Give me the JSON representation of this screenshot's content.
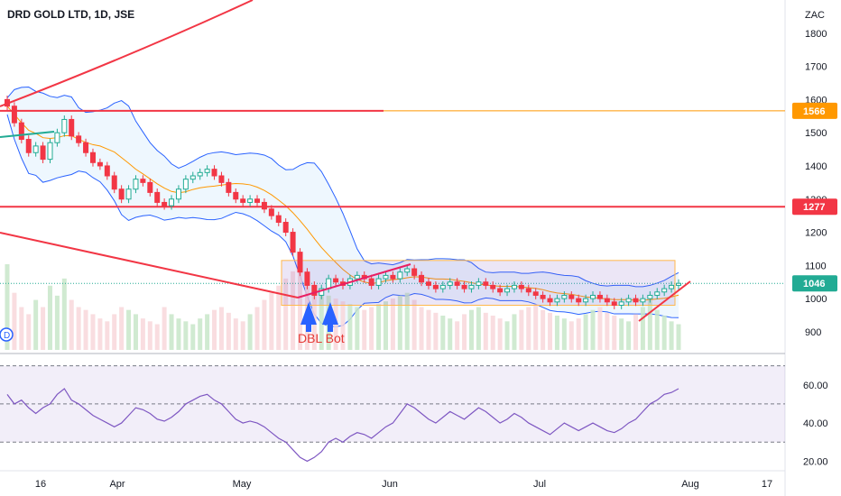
{
  "chart_data": {
    "type": "candlestick",
    "title": "DRD GOLD LTD, 1D, JSE",
    "currency_label": "ZAC",
    "x_ticks": [
      "16",
      "Apr",
      "May",
      "Jun",
      "Jul",
      "Aug",
      "17"
    ],
    "y_ticks": [
      900,
      1000,
      1100,
      1200,
      1300,
      1400,
      1500,
      1600,
      1700,
      1800
    ],
    "ylim": [
      840,
      1900
    ],
    "price_tags": [
      {
        "value": 1566,
        "label": "1566",
        "color": "#ff9800"
      },
      {
        "value": 1277,
        "label": "1277",
        "color": "#f23645"
      },
      {
        "value": 1046,
        "label": "1046",
        "color": "#22ab94"
      }
    ],
    "horizontal_lines": [
      {
        "value": 1566,
        "color": "#f23645"
      },
      {
        "value": 1277,
        "color": "#f23645"
      }
    ],
    "annotation": "DBL Bot",
    "closes": [
      1580,
      1530,
      1480,
      1440,
      1460,
      1420,
      1470,
      1500,
      1540,
      1490,
      1470,
      1440,
      1410,
      1400,
      1370,
      1330,
      1300,
      1330,
      1360,
      1350,
      1320,
      1290,
      1280,
      1300,
      1330,
      1360,
      1370,
      1380,
      1390,
      1370,
      1350,
      1320,
      1300,
      1290,
      1300,
      1290,
      1270,
      1250,
      1230,
      1200,
      1140,
      1080,
      1040,
      1010,
      1030,
      1060,
      1050,
      1040,
      1060,
      1070,
      1060,
      1040,
      1060,
      1070,
      1060,
      1080,
      1090,
      1070,
      1050,
      1040,
      1030,
      1040,
      1050,
      1040,
      1030,
      1040,
      1050,
      1040,
      1030,
      1020,
      1030,
      1040,
      1030,
      1020,
      1010,
      1000,
      990,
      1000,
      1010,
      1000,
      990,
      1000,
      1010,
      1000,
      990,
      980,
      990,
      1000,
      990,
      1000,
      1010,
      1020,
      1030,
      1040,
      1046
    ],
    "rsi": {
      "levels": [
        70,
        50,
        30
      ],
      "y_ticks": [
        20,
        40,
        60
      ],
      "tick_labels": [
        "20.00",
        "40.00",
        "60.00"
      ],
      "ylim": [
        15,
        75
      ],
      "values": [
        55,
        50,
        52,
        48,
        45,
        48,
        50,
        55,
        58,
        52,
        50,
        47,
        44,
        42,
        40,
        38,
        40,
        44,
        48,
        47,
        45,
        42,
        41,
        43,
        46,
        50,
        52,
        54,
        55,
        52,
        50,
        46,
        42,
        40,
        41,
        40,
        38,
        35,
        32,
        30,
        26,
        22,
        20,
        22,
        25,
        30,
        32,
        30,
        33,
        35,
        34,
        32,
        35,
        38,
        40,
        45,
        50,
        48,
        45,
        42,
        40,
        43,
        46,
        44,
        42,
        45,
        48,
        46,
        43,
        40,
        42,
        45,
        43,
        40,
        38,
        36,
        34,
        37,
        40,
        38,
        36,
        38,
        40,
        38,
        36,
        35,
        37,
        40,
        42,
        46,
        50,
        52,
        55,
        56,
        58
      ]
    },
    "volume": [
      60,
      40,
      30,
      25,
      35,
      30,
      45,
      38,
      50,
      35,
      30,
      28,
      25,
      22,
      20,
      25,
      30,
      28,
      25,
      22,
      20,
      18,
      30,
      25,
      22,
      20,
      18,
      22,
      25,
      28,
      30,
      26,
      22,
      20,
      25,
      30,
      35,
      40,
      45,
      50,
      55,
      60,
      50,
      45,
      40,
      38,
      36,
      34,
      32,
      30,
      28,
      30,
      32,
      34,
      36,
      38,
      40,
      35,
      30,
      28,
      26,
      24,
      22,
      20,
      25,
      28,
      30,
      26,
      24,
      22,
      20,
      25,
      28,
      30,
      32,
      28,
      26,
      24,
      22,
      20,
      22,
      25,
      28,
      30,
      26,
      24,
      22,
      20,
      25,
      30,
      35,
      28,
      24,
      20,
      18
    ],
    "colors": {
      "up": "#22ab94",
      "down": "#f23645",
      "ma": "#ff9800",
      "band": "#2962ff",
      "rsi": "#7e57c2"
    }
  }
}
